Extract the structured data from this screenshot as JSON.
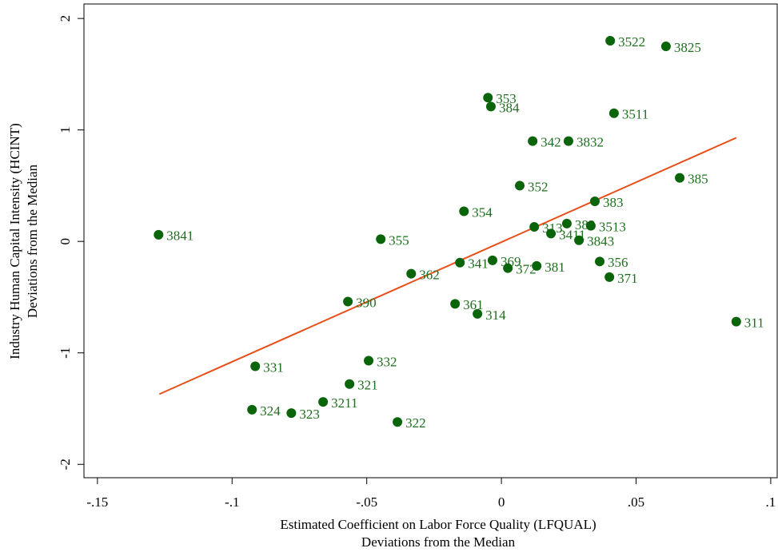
{
  "chart_data": {
    "type": "scatter",
    "xlabel": [
      "Estimated Coefficient on Labor Force Quality (LFQUAL)",
      "Deviations from the Median"
    ],
    "ylabel": [
      "Industry Human Capital Intensity (HCINT)",
      "Deviations from the Median"
    ],
    "xlim": [
      -0.155,
      0.1024
    ],
    "ylim": [
      -2.12,
      2.13
    ],
    "xticks": [
      {
        "value": -0.15,
        "label": "-.15"
      },
      {
        "value": -0.1,
        "label": "-.1"
      },
      {
        "value": -0.05,
        "label": "-.05"
      },
      0,
      {
        "value": 0.05,
        "label": ".05"
      },
      {
        "value": 0.1,
        "label": ".1"
      }
    ],
    "yticks": [
      -2,
      -1,
      0,
      1,
      2
    ],
    "color": "#0a640a",
    "label_color": "#1e6e1e",
    "labels": [
      "3522",
      "3825",
      "353",
      "384",
      "3511",
      "342",
      "3832",
      "385",
      "352",
      "383",
      "354",
      "382",
      "3513",
      "313",
      "3411",
      "3841",
      "355",
      "3843",
      "341",
      "369",
      "356",
      "372",
      "381",
      "362",
      "371",
      "390",
      "361",
      "314",
      "311",
      "331",
      "332",
      "321",
      "3211",
      "324",
      "323",
      "322"
    ],
    "x": [
      0.0404,
      0.0611,
      -0.005,
      -0.0039,
      0.0418,
      0.0116,
      0.0249,
      0.0662,
      0.0068,
      0.0347,
      -0.0139,
      0.0243,
      0.0332,
      0.0122,
      0.0184,
      -0.1273,
      -0.0448,
      0.0288,
      -0.0154,
      -0.0033,
      0.0365,
      0.0024,
      0.0131,
      -0.0335,
      0.0401,
      -0.057,
      -0.0172,
      -0.0089,
      0.0872,
      -0.0914,
      -0.0493,
      -0.0564,
      -0.0662,
      -0.0926,
      -0.078,
      -0.0386
    ],
    "y": [
      1.8,
      1.75,
      1.29,
      1.21,
      1.15,
      0.9,
      0.9,
      0.57,
      0.5,
      0.36,
      0.27,
      0.16,
      0.14,
      0.13,
      0.07,
      0.06,
      0.02,
      0.01,
      -0.19,
      -0.17,
      -0.18,
      -0.24,
      -0.22,
      -0.29,
      -0.32,
      -0.54,
      -0.56,
      -0.65,
      -0.72,
      -1.12,
      -1.07,
      -1.28,
      -1.44,
      -1.51,
      -1.54,
      -1.62
    ],
    "fit": {
      "color": "#e8501a",
      "x": [
        -0.127,
        0.0872
      ],
      "y": [
        -1.37,
        0.93
      ]
    }
  }
}
